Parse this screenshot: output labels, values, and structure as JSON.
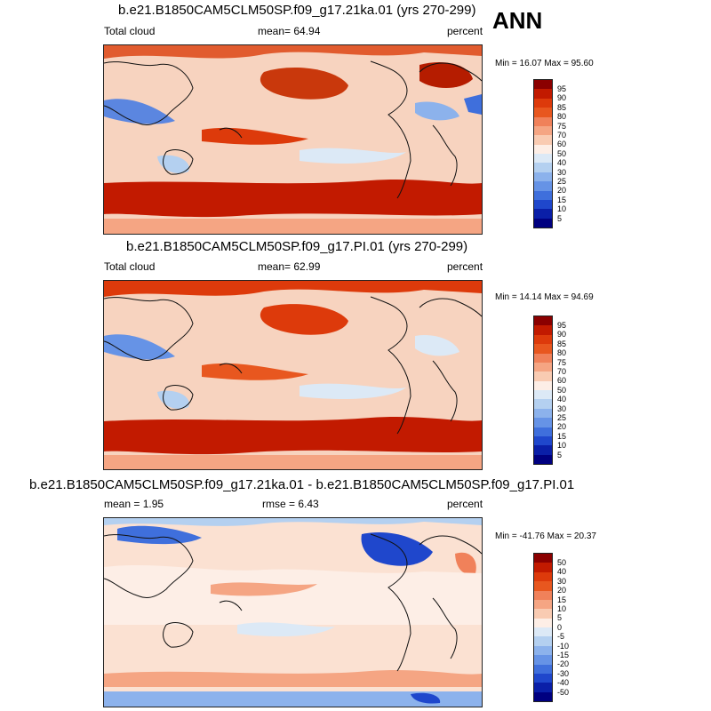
{
  "season": "ANN",
  "panels": [
    {
      "title": "b.e21.B1850CAM5CLM50SP.f09_g17.21ka.01 (yrs 270-299)",
      "left_label": "Total cloud",
      "mean_text": "mean=  64.94",
      "units": "percent",
      "minmax_text": "Min =  16.07 Max =  95.60"
    },
    {
      "title": "b.e21.B1850CAM5CLM50SP.f09_g17.PI.01 (yrs 270-299)",
      "left_label": "Total cloud",
      "mean_text": "mean=  62.99",
      "units": "percent",
      "minmax_text": "Min =  14.14 Max =  94.69"
    },
    {
      "title": "b.e21.B1850CAM5CLM50SP.f09_g17.21ka.01 - b.e21.B1850CAM5CLM50SP.f09_g17.PI.01",
      "left_label": "mean =   1.95",
      "mean_text": "rmse =   6.43",
      "units": "percent",
      "minmax_text": "Min = -41.76 Max =  20.37"
    }
  ],
  "chart_data": [
    {
      "type": "heatmap",
      "title": "b.e21.B1850CAM5CLM50SP.f09_g17.21ka.01 (yrs 270-299)",
      "variable": "Total cloud",
      "units": "percent",
      "mean": 64.94,
      "min": 16.07,
      "max": 95.6,
      "levels": [
        "95",
        "90",
        "85",
        "80",
        "75",
        "70",
        "60",
        "50",
        "40",
        "30",
        "25",
        "20",
        "15",
        "10",
        "5"
      ],
      "colors": [
        "#8b0000",
        "#c21a00",
        "#dd3a0b",
        "#e8571f",
        "#f0815a",
        "#f5a583",
        "#f9cbb2",
        "#fdeee6",
        "#dce9f6",
        "#b4d0f0",
        "#8cb2ec",
        "#6693e6",
        "#3f6fdc",
        "#1f47cc",
        "#0a1fa8",
        "#000080"
      ]
    },
    {
      "type": "heatmap",
      "title": "b.e21.B1850CAM5CLM50SP.f09_g17.PI.01 (yrs 270-299)",
      "variable": "Total cloud",
      "units": "percent",
      "mean": 62.99,
      "min": 14.14,
      "max": 94.69,
      "levels": [
        "95",
        "90",
        "85",
        "80",
        "75",
        "70",
        "60",
        "50",
        "40",
        "30",
        "25",
        "20",
        "15",
        "10",
        "5"
      ],
      "colors": [
        "#8b0000",
        "#c21a00",
        "#dd3a0b",
        "#e8571f",
        "#f0815a",
        "#f5a583",
        "#f9cbb2",
        "#fdeee6",
        "#dce9f6",
        "#b4d0f0",
        "#8cb2ec",
        "#6693e6",
        "#3f6fdc",
        "#1f47cc",
        "#0a1fa8",
        "#000080"
      ]
    },
    {
      "type": "heatmap",
      "title": "b.e21.B1850CAM5CLM50SP.f09_g17.21ka.01 - b.e21.B1850CAM5CLM50SP.f09_g17.PI.01",
      "units": "percent",
      "mean": 1.95,
      "rmse": 6.43,
      "min": -41.76,
      "max": 20.37,
      "levels": [
        "50",
        "40",
        "30",
        "20",
        "15",
        "10",
        "5",
        "0",
        "-5",
        "-10",
        "-15",
        "-20",
        "-30",
        "-40",
        "-50"
      ],
      "colors": [
        "#8b0000",
        "#c21a00",
        "#dd3a0b",
        "#e8571f",
        "#f0815a",
        "#f5a583",
        "#f9cbb2",
        "#fdeee6",
        "#dce9f6",
        "#b4d0f0",
        "#8cb2ec",
        "#6693e6",
        "#3f6fdc",
        "#1f47cc",
        "#0a1fa8",
        "#000080"
      ]
    }
  ]
}
